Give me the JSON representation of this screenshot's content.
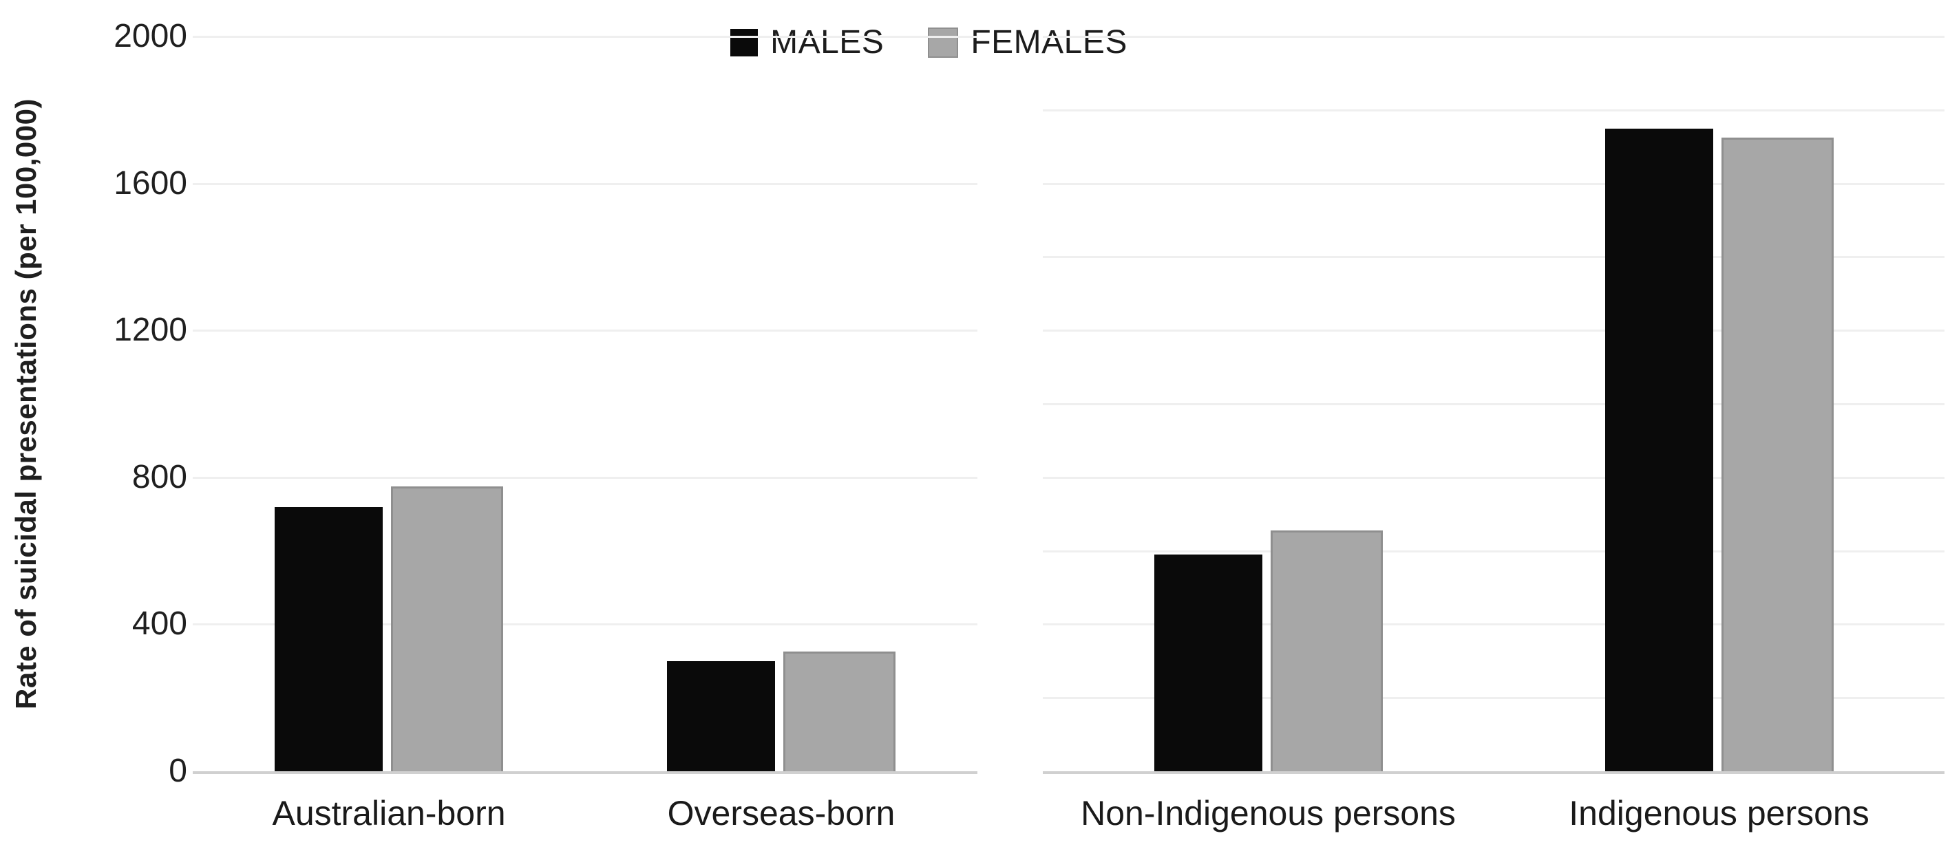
{
  "chart_data": {
    "type": "bar",
    "title": "",
    "ylabel": "Rate of suicidal presentations (per 100,000)",
    "xlabel": "",
    "ylim": [
      0,
      2000
    ],
    "yticks": [
      2000,
      1600,
      1200,
      800,
      400,
      0
    ],
    "grid": "horizontal",
    "legend_position": "top-center",
    "legend": [
      "MALES",
      "FEMALES"
    ],
    "panels": [
      {
        "name": "country-of-birth",
        "categories": [
          "Australian-born",
          "Overseas-born"
        ],
        "gridline_values": [
          2000,
          1600,
          1200,
          800,
          400
        ],
        "series": [
          {
            "name": "MALES",
            "color": "#0a0a0a",
            "values": [
              720,
              300
            ]
          },
          {
            "name": "FEMALES",
            "color": "#a7a7a7",
            "values": [
              770,
              320
            ]
          }
        ]
      },
      {
        "name": "indigenous-status",
        "categories": [
          "Non-Indigenous persons",
          "Indigenous persons"
        ],
        "gridline_values": [
          2000,
          1800,
          1600,
          1400,
          1200,
          1000,
          800,
          600,
          400,
          200
        ],
        "series": [
          {
            "name": "MALES",
            "color": "#0a0a0a",
            "values": [
              590,
              1750
            ]
          },
          {
            "name": "FEMALES",
            "color": "#a7a7a7",
            "values": [
              650,
              1720
            ]
          }
        ]
      }
    ],
    "colors": {
      "males": "#0a0a0a",
      "females": "#a7a7a7",
      "gridline": "#efefef",
      "axis_line": "#d0d0d0",
      "background": "#ffffff"
    }
  },
  "y_axis": {
    "title": "Rate of suicidal presentations (per 100,000)",
    "tick_labels": [
      "2000",
      "1600",
      "1200",
      "800",
      "400",
      "0"
    ]
  },
  "legend": {
    "items": [
      {
        "label": "MALES",
        "color": "#0a0a0a"
      },
      {
        "label": "FEMALES",
        "color": "#a7a7a7"
      }
    ]
  }
}
